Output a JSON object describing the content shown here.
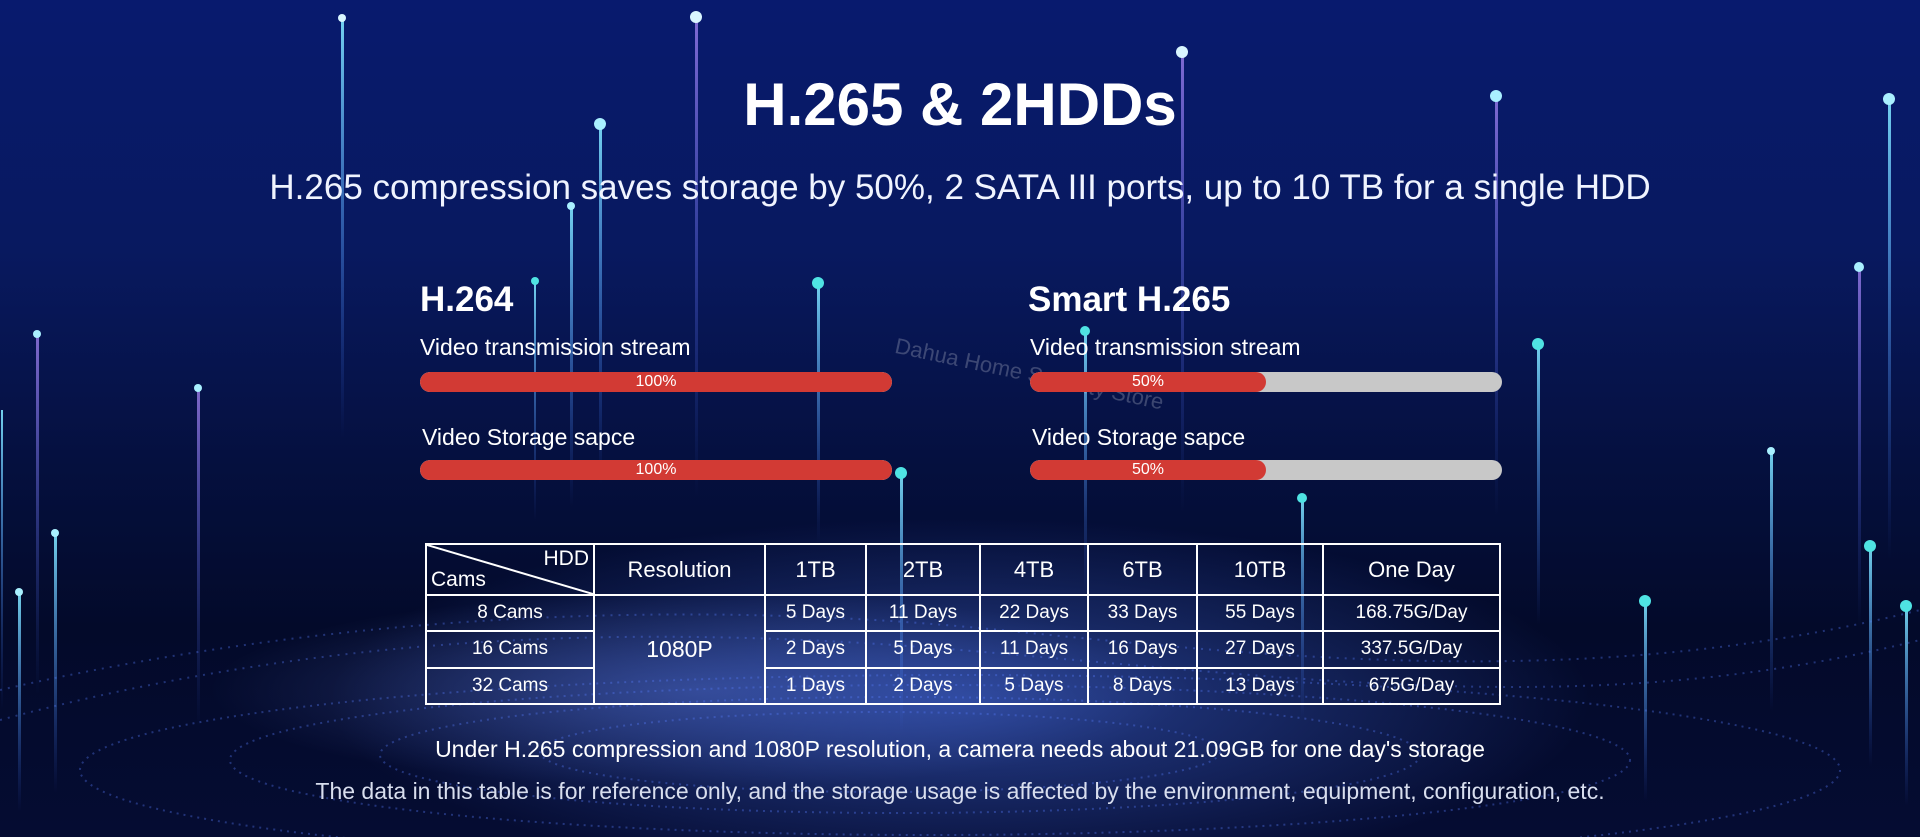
{
  "header": {
    "title": "H.265 & 2HDDs",
    "subtitle": "H.265 compression saves storage by 50%, 2 SATA III ports, up to 10 TB for a single HDD"
  },
  "watermark": "Dahua Home Security Store",
  "comparison": [
    {
      "codec": "H.264",
      "metrics": [
        {
          "label": "Video transmission stream",
          "percent": 100,
          "percent_text": "100%"
        },
        {
          "label": "Video Storage sapce",
          "percent": 100,
          "percent_text": "100%"
        }
      ]
    },
    {
      "codec": "Smart H.265",
      "metrics": [
        {
          "label": "Video transmission stream",
          "percent": 50,
          "percent_text": "50%"
        },
        {
          "label": "Video Storage sapce",
          "percent": 50,
          "percent_text": "50%"
        }
      ]
    }
  ],
  "table": {
    "corner_top": "HDD",
    "corner_bottom": "Cams",
    "headers": [
      "Resolution",
      "1TB",
      "2TB",
      "4TB",
      "6TB",
      "10TB",
      "One Day"
    ],
    "resolution": "1080P",
    "rows": [
      {
        "cams": "8 Cams",
        "values": [
          "5 Days",
          "11 Days",
          "22 Days",
          "33 Days",
          "55 Days",
          "168.75G/Day"
        ]
      },
      {
        "cams": "16 Cams",
        "values": [
          "2 Days",
          "5 Days",
          "11 Days",
          "16 Days",
          "27 Days",
          "337.5G/Day"
        ]
      },
      {
        "cams": "32 Cams",
        "values": [
          "1 Days",
          "2 Days",
          "5 Days",
          "8 Days",
          "13 Days",
          "675G/Day"
        ]
      }
    ]
  },
  "notes": {
    "summary": "Under H.265 compression and 1080P resolution, a camera needs about 21.09GB for one day's storage",
    "disclaimer": "The data in this table is for reference only, and the storage usage is affected by the environment, equipment, configuration, etc."
  },
  "colors": {
    "bar_fill": "#d23a34",
    "bar_track": "#c8c8c8",
    "background": "#081a6e"
  }
}
